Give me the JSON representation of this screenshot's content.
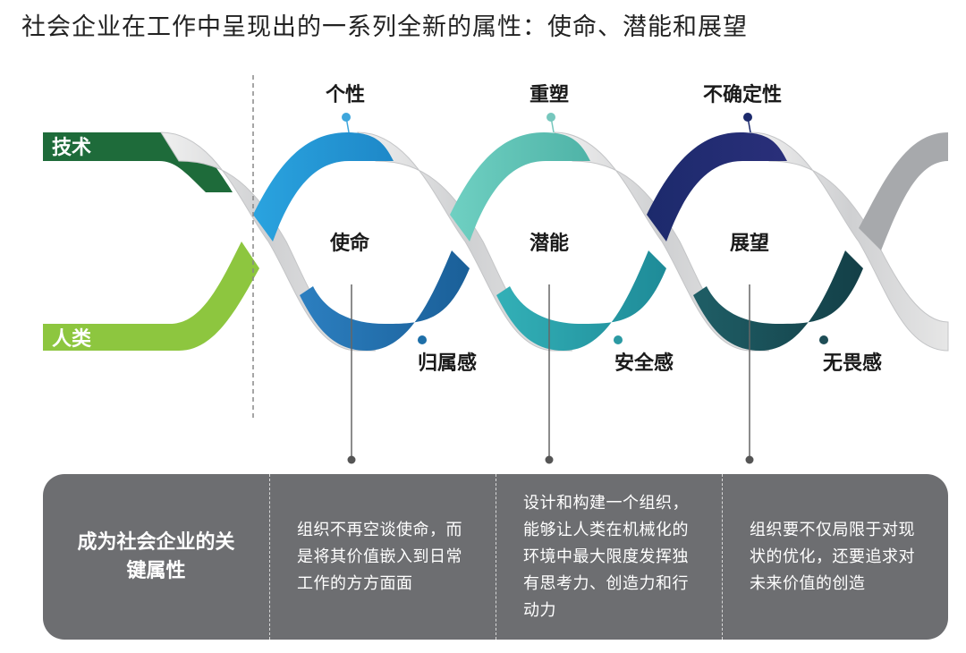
{
  "title": "社会企业在工作中呈现出的一系列全新的属性：使命、潜能和展望",
  "bands": {
    "tech_label": "技术",
    "human_label": "人类"
  },
  "top_nodes": [
    {
      "label": "个性",
      "color": "#3ea6dc"
    },
    {
      "label": "重塑",
      "color": "#76c7bd"
    },
    {
      "label": "不确定性",
      "color": "#1c2a6c"
    }
  ],
  "bottom_nodes": [
    {
      "label": "归属感",
      "color": "#1e6fa8"
    },
    {
      "label": "安全感",
      "color": "#2b9aa3"
    },
    {
      "label": "无畏感",
      "color": "#1e4d56"
    }
  ],
  "centers": [
    "使命",
    "潜能",
    "展望"
  ],
  "panel": {
    "heading": "成为社会企业的关键属性",
    "cells": [
      "组织不再空谈使命，而是将其价值嵌入到日常工作的方方面面",
      "设计和构建一个组织，能够让人类在机械化的环境中最大限度发挥独有思考力、创造力和行动力",
      "组织要不仅局限于对现状的优化，还要追求对未来价值的创造"
    ]
  },
  "colors": {
    "tech_green": "#1e6b3a",
    "human_green": "#8dc63f",
    "ribbon_grey": "#d9dadb",
    "panel_grey": "#6d6e71"
  }
}
